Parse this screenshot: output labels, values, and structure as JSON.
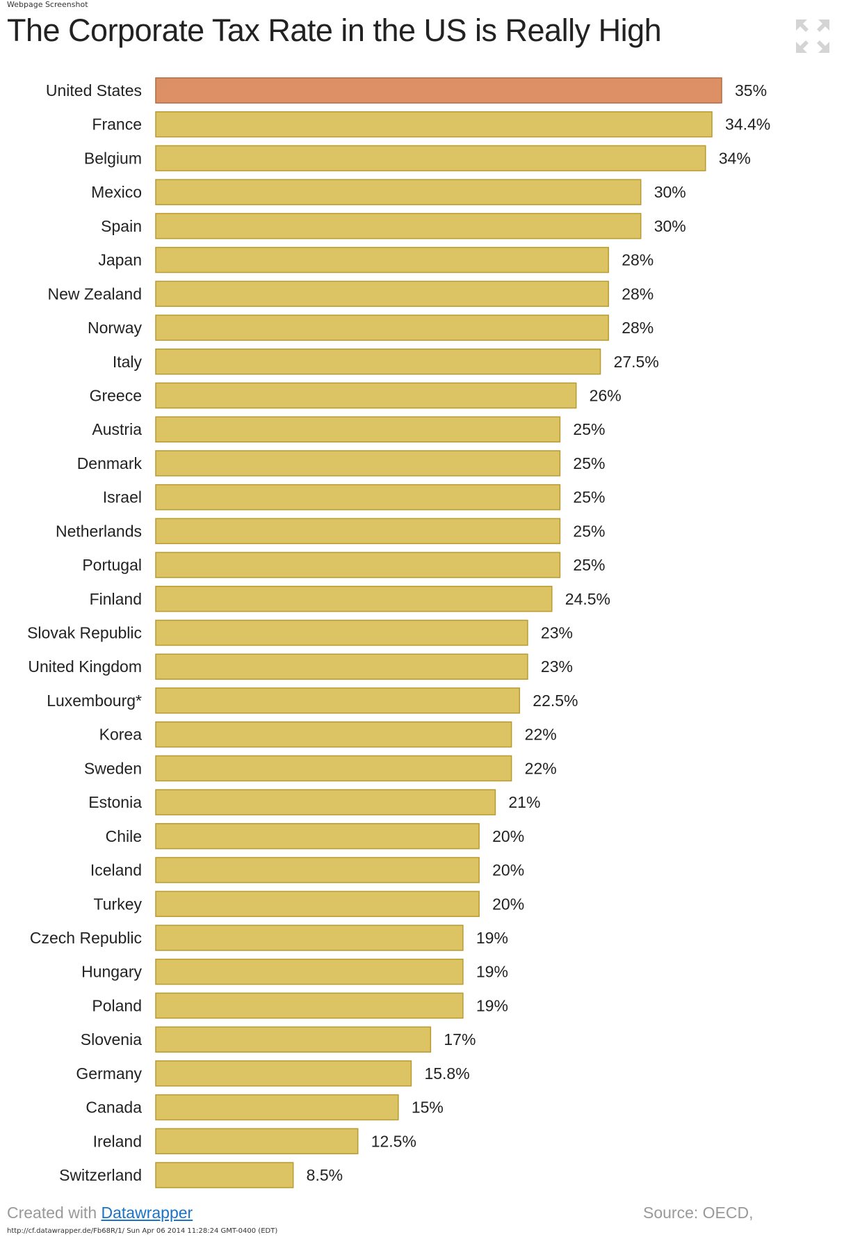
{
  "page": {
    "top_label": "Webpage Screenshot",
    "bottom_url": "http://cf.datawrapper.de/Fb68R/1/ Sun Apr 06 2014 11:28:24 GMT-0400 (EDT)"
  },
  "icons": {
    "fullscreen": "fullscreen-expand-icon"
  },
  "footer": {
    "created_prefix": "Created with ",
    "created_link": "Datawrapper",
    "source": "Source: OECD,"
  },
  "colors": {
    "highlight_bar": "#DD9066",
    "highlight_stroke": "#B06A40",
    "bar": "#DCC465",
    "bar_stroke": "#B89A30",
    "label_text": "#222222"
  },
  "chart_data": {
    "type": "bar",
    "orientation": "horizontal",
    "title": "The Corporate Tax Rate in the US is Really High",
    "xlabel": "",
    "ylabel": "",
    "xlim": [
      0,
      35
    ],
    "highlight": "United States",
    "categories": [
      "United States",
      "France",
      "Belgium",
      "Mexico",
      "Spain",
      "Japan",
      "New Zealand",
      "Norway",
      "Italy",
      "Greece",
      "Austria",
      "Denmark",
      "Israel",
      "Netherlands",
      "Portugal",
      "Finland",
      "Slovak Republic",
      "United Kingdom",
      "Luxembourg*",
      "Korea",
      "Sweden",
      "Estonia",
      "Chile",
      "Iceland",
      "Turkey",
      "Czech Republic",
      "Hungary",
      "Poland",
      "Slovenia",
      "Germany",
      "Canada",
      "Ireland",
      "Switzerland"
    ],
    "values": [
      35,
      34.4,
      34,
      30,
      30,
      28,
      28,
      28,
      27.5,
      26,
      25,
      25,
      25,
      25,
      25,
      24.5,
      23,
      23,
      22.5,
      22,
      22,
      21,
      20,
      20,
      20,
      19,
      19,
      19,
      17,
      15.8,
      15,
      12.5,
      8.5
    ],
    "value_labels": [
      "35%",
      "34.4%",
      "34%",
      "30%",
      "30%",
      "28%",
      "28%",
      "28%",
      "27.5%",
      "26%",
      "25%",
      "25%",
      "25%",
      "25%",
      "25%",
      "24.5%",
      "23%",
      "23%",
      "22.5%",
      "22%",
      "22%",
      "21%",
      "20%",
      "20%",
      "20%",
      "19%",
      "19%",
      "19%",
      "17%",
      "15.8%",
      "15%",
      "12.5%",
      "8.5%"
    ]
  }
}
